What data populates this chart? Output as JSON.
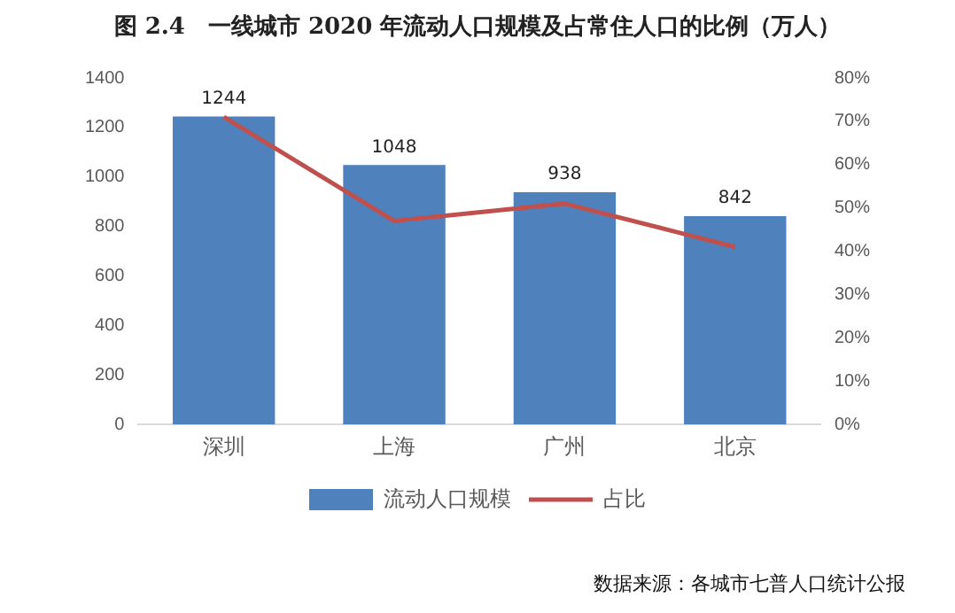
{
  "chart_data": {
    "type": "bar",
    "title": "图 2.4　一线城市 2020 年流动人口规模及占常住人口的比例（万人）",
    "categories": [
      "深圳",
      "上海",
      "广州",
      "北京"
    ],
    "series": [
      {
        "name": "流动人口规模",
        "color": "#4f81bd",
        "values": [
          1244,
          1048,
          938,
          842
        ],
        "value_labels": [
          "1244",
          "1048",
          "938",
          "842"
        ]
      },
      {
        "name": "占比",
        "type": "line",
        "axis": "y2",
        "color": "#c0504d",
        "values": [
          71,
          47,
          51,
          41
        ],
        "marker": "none"
      }
    ],
    "ylim": [
      0,
      1400
    ],
    "yticks": [
      0,
      200,
      400,
      600,
      800,
      1000,
      1200,
      1400
    ],
    "y2lim": [
      0,
      80
    ],
    "y2ticks": [
      {
        "value": 0,
        "label": "0%"
      },
      {
        "value": 10,
        "label": "10%"
      },
      {
        "value": 20,
        "label": "20%"
      },
      {
        "value": 30,
        "label": "30%"
      },
      {
        "value": 40,
        "label": "40%"
      },
      {
        "value": 50,
        "label": "50%"
      },
      {
        "value": 60,
        "label": "60%"
      },
      {
        "value": 70,
        "label": "70%"
      },
      {
        "value": 80,
        "label": "80%"
      }
    ],
    "grid": false,
    "legend": "bottom",
    "annotations": [
      "数据来源：各城市七普人口统计公报"
    ]
  }
}
